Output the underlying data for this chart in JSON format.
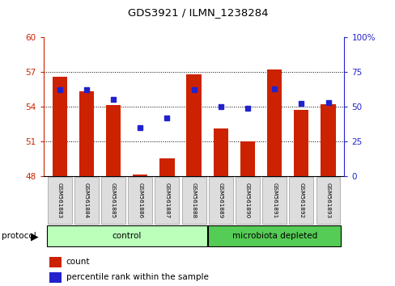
{
  "title": "GDS3921 / ILMN_1238284",
  "samples": [
    "GSM561883",
    "GSM561884",
    "GSM561885",
    "GSM561886",
    "GSM561887",
    "GSM561888",
    "GSM561889",
    "GSM561890",
    "GSM561891",
    "GSM561892",
    "GSM561893"
  ],
  "counts": [
    56.6,
    55.3,
    54.1,
    48.1,
    49.5,
    56.8,
    52.1,
    51.0,
    57.2,
    53.7,
    54.2
  ],
  "percentile_ranks": [
    62,
    62,
    55,
    35,
    42,
    62,
    50,
    49,
    63,
    52,
    53
  ],
  "ylim_left": [
    48,
    60
  ],
  "ylim_right": [
    0,
    100
  ],
  "yticks_left": [
    48,
    51,
    54,
    57,
    60
  ],
  "yticks_right": [
    0,
    25,
    50,
    75,
    100
  ],
  "bar_color": "#cc2200",
  "dot_color": "#2222cc",
  "bar_bottom": 48,
  "control_n": 6,
  "control_color": "#bbffbb",
  "microbiota_color": "#55cc55",
  "protocol_label": "protocol",
  "control_label": "control",
  "microbiota_label": "microbiota depleted",
  "legend_count_label": "count",
  "legend_pct_label": "percentile rank within the sample",
  "axis_color_left": "#cc2200",
  "axis_color_right": "#2222cc",
  "bg_color": "#ffffff"
}
